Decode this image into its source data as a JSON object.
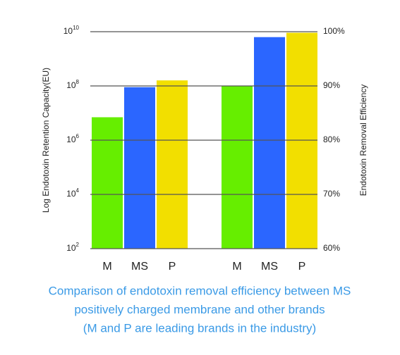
{
  "chart_data": {
    "type": "bar",
    "ylabel": "Log Endotoxin Retention Capacity(EU)",
    "y2label": "Endotoxin Removal Efficiency",
    "ylog": true,
    "ylim": [
      100,
      10000000000
    ],
    "yticks": [
      {
        "value": 100,
        "label": "10",
        "exponent": "2"
      },
      {
        "value": 10000,
        "label": "10",
        "exponent": "4"
      },
      {
        "value": 1000000,
        "label": "10",
        "exponent": "6"
      },
      {
        "value": 100000000,
        "label": "10",
        "exponent": "8"
      },
      {
        "value": 10000000000,
        "label": "10",
        "exponent": "10"
      }
    ],
    "y2lim": [
      60,
      100
    ],
    "y2ticks": [
      {
        "value": 60,
        "label": "60%"
      },
      {
        "value": 70,
        "label": "70%"
      },
      {
        "value": 80,
        "label": "80%"
      },
      {
        "value": 90,
        "label": "90%"
      },
      {
        "value": 100,
        "label": "100%"
      }
    ],
    "grid": true,
    "colors": [
      "#66ee00",
      "#2b66ff",
      "#f2df00"
    ],
    "series": [
      {
        "axis": "y",
        "categories": [
          "M",
          "MS",
          "P"
        ],
        "values": [
          7000000,
          90000000,
          160000000
        ]
      },
      {
        "axis": "y2",
        "categories": [
          "M",
          "MS",
          "P"
        ],
        "values": [
          90,
          99,
          99.8
        ]
      }
    ],
    "caption": [
      "Comparison of endotoxin removal efficiency between MS",
      "positively charged membrane and other brands",
      "(M and P are leading brands in the industry)"
    ]
  }
}
